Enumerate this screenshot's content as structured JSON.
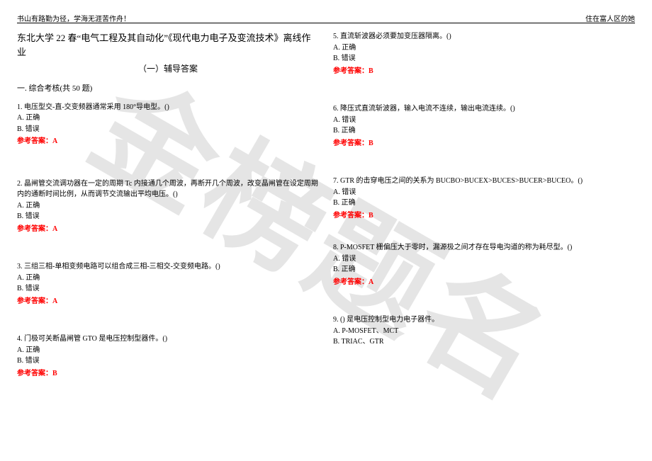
{
  "watermark": "金榜题名",
  "header": {
    "left": "书山有路勤为径，学海无涯苦作舟！",
    "right": "住在富人区的她"
  },
  "title": "东北大学 22 春“电气工程及其自动化”《现代电力电子及变流技术》离线作业",
  "subtitle": "（一）辅导答案",
  "section_heading": "一. 综合考核(共 50 题)",
  "answer_label_prefix": "参考答案：",
  "left_questions": [
    {
      "num": "1.",
      "text": "电压型交-直-交变频器通常采用 180°导电型。()",
      "opts": [
        "A. 正确",
        "B. 错误"
      ],
      "ans": "A",
      "gap": ""
    },
    {
      "num": "2.",
      "text": "晶闸管交流调功器在一定的周期 Tc 内接通几个周波，再断开几个周波，改变晶闸管在设定周期内的通断时间比例，从而调节交流输出平均电压。()",
      "opts": [
        "A. 正确",
        "B. 错误"
      ],
      "ans": "A",
      "gap": "gap-l"
    },
    {
      "num": "3.",
      "text": "三组三相-单相变频电路可以组合成三相-三相交-交变频电路。()",
      "opts": [
        "A. 正确",
        "B. 错误"
      ],
      "ans": "A",
      "gap": "gap-m"
    },
    {
      "num": "4.",
      "text": "门极可关断晶闸管 GTO 是电压控制型器件。()",
      "opts": [
        "A. 正确",
        "B. 错误"
      ],
      "ans": "B",
      "gap": "gap-m"
    }
  ],
  "right_questions": [
    {
      "num": "5.",
      "text": "直流斩波器必须要加变压器隔离。()",
      "opts": [
        "A. 正确",
        "B. 错误"
      ],
      "ans": "B",
      "gap": ""
    },
    {
      "num": "6.",
      "text": "降压式直流斩波器，输入电流不连续，输出电流连续。()",
      "opts": [
        "A. 错误",
        "B. 正确"
      ],
      "ans": "B",
      "gap": "gap-m"
    },
    {
      "num": "7.",
      "text": "GTR 的击穿电压之间的关系为 BUCBO>BUCEX>BUCES>BUCER>BUCEO。()",
      "opts": [
        "A. 错误",
        "B. 正确"
      ],
      "ans": "B",
      "gap": "gap-m"
    },
    {
      "num": "8.",
      "text": "P-MOSFET 栅偏压大于零时，漏源极之间才存在导电沟道的称为耗尽型。()",
      "opts": [
        "A. 错误",
        "B. 正确"
      ],
      "ans": "A",
      "gap": "gap-s"
    },
    {
      "num": "9.",
      "text": "() 是电压控制型电力电子器件。",
      "opts": [
        "A. P-MOSFET、MCT",
        "B. TRIAC、GTR"
      ],
      "ans": "",
      "gap": "gap-m"
    }
  ]
}
